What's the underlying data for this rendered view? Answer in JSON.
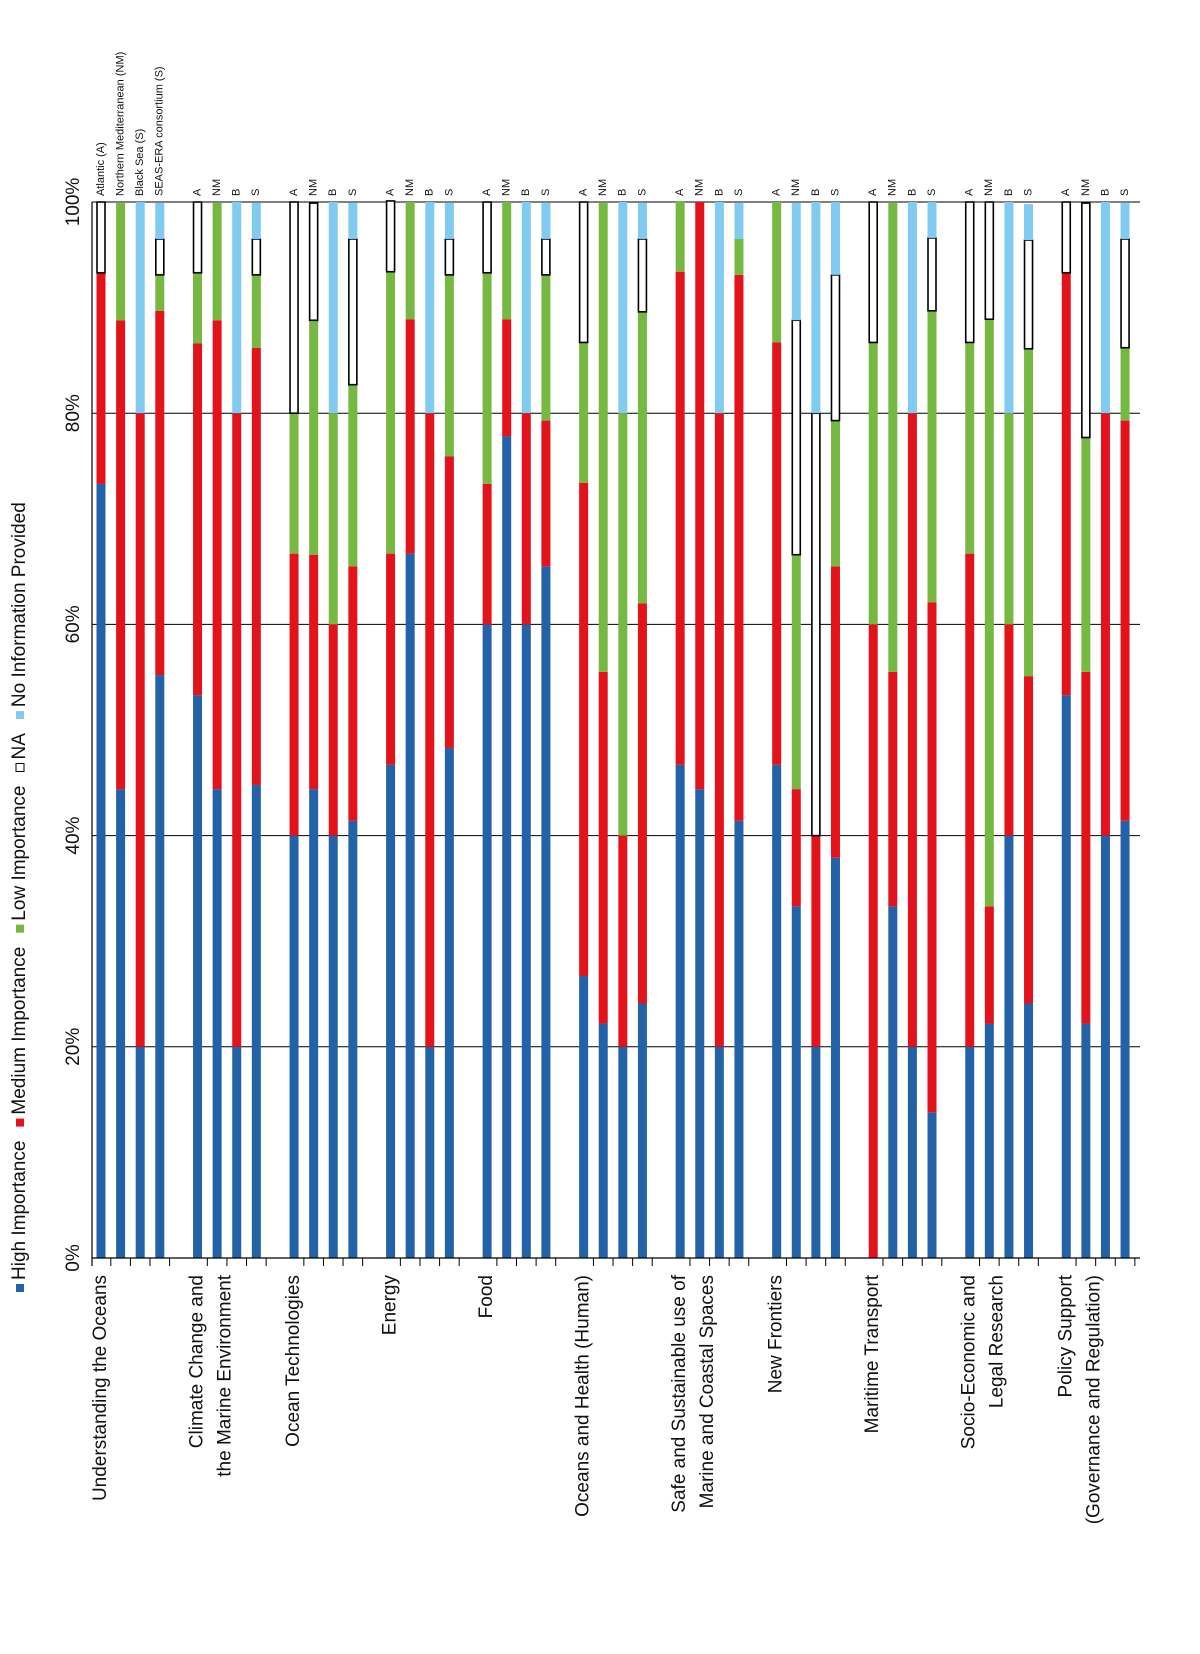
{
  "chart_data": {
    "type": "stacked-bar",
    "categories": [
      "Atlantic (A)",
      "Northern Mediterranean (NM)",
      "Black Sea (S)",
      "SEAS-ERA consortium (S)",
      "A",
      "NM",
      "B",
      "S",
      "A",
      "NM",
      "B",
      "S",
      "A",
      "NM",
      "B",
      "S",
      "A",
      "NM",
      "B",
      "S",
      "A",
      "NM",
      "B",
      "S",
      "A",
      "NM",
      "B",
      "S",
      "A",
      "NM",
      "B",
      "S",
      "A",
      "NM",
      "B",
      "S",
      "A",
      "NM",
      "B",
      "S",
      "A",
      "NM",
      "B",
      "S"
    ],
    "groups": [
      [
        "Understanding the Oceans"
      ],
      [
        "Climate Change and",
        "the Marine Environment"
      ],
      [
        "Ocean Technologies"
      ],
      [
        "Energy"
      ],
      [
        "Food"
      ],
      [
        "Oceans and Health (Human)"
      ],
      [
        "Safe and Sustainable use of",
        "Marine and Coastal Spaces"
      ],
      [
        "New Frontiers"
      ],
      [
        "Maritime Transport"
      ],
      [
        "Socio-Economic and",
        "Legal Research"
      ],
      [
        "Policy Support",
        "(Governance and Regulation)"
      ]
    ],
    "series": [
      {
        "name": "High Importance",
        "color": "#2462a8",
        "values": [
          73.3,
          44.4,
          20,
          55.2,
          53.3,
          44.4,
          20,
          44.8,
          40,
          44.4,
          40,
          41.4,
          46.7,
          66.7,
          20,
          48.3,
          60,
          77.8,
          60,
          65.5,
          26.7,
          22.2,
          20,
          24.1,
          46.7,
          44.4,
          20,
          41.4,
          46.7,
          33.3,
          20,
          37.9,
          0,
          33.3,
          20,
          13.8,
          20,
          22.2,
          40,
          24.1,
          53.3,
          22.2,
          40,
          41.4
        ]
      },
      {
        "name": "Medium Importance",
        "color": "#e3131b",
        "values": [
          20,
          44.4,
          60,
          34.5,
          33.3,
          44.4,
          60,
          41.4,
          26.7,
          22.2,
          20,
          24.1,
          20,
          22.2,
          60,
          27.6,
          13.3,
          11.1,
          20,
          13.8,
          46.7,
          33.3,
          20,
          37.9,
          46.7,
          55.6,
          60,
          51.7,
          40,
          11.1,
          20,
          27.6,
          60,
          22.2,
          60,
          48.3,
          46.7,
          11.1,
          20,
          31,
          40,
          33.3,
          40,
          37.9
        ]
      },
      {
        "name": "Low Importance",
        "color": "#77b843",
        "values": [
          0,
          11.1,
          0,
          3.4,
          6.7,
          11.1,
          0,
          6.9,
          13.3,
          22.2,
          20,
          17.2,
          26.7,
          11.1,
          0,
          17.2,
          20,
          11.1,
          0,
          13.8,
          13.3,
          44.4,
          40,
          27.6,
          6.7,
          0,
          0,
          3.4,
          13.3,
          22.2,
          0,
          13.8,
          26.7,
          44.4,
          0,
          27.6,
          20,
          55.6,
          20,
          31,
          0,
          22.2,
          0,
          6.9
        ]
      },
      {
        "name": "NA",
        "color": "#ffffff",
        "values": [
          6.7,
          0,
          0,
          3.4,
          6.7,
          0,
          0,
          3.4,
          20,
          11.1,
          0,
          13.8,
          6.7,
          0,
          0,
          3.4,
          6.7,
          0,
          0,
          3.4,
          13.3,
          0,
          0,
          6.9,
          0,
          0,
          0,
          0,
          0,
          22.2,
          40,
          13.8,
          13.3,
          0,
          0,
          6.9,
          13.3,
          11.1,
          0,
          10.3,
          6.7,
          22.2,
          0,
          10.3
        ]
      },
      {
        "name": "No Information Provided",
        "color": "#80cbef",
        "values": [
          0,
          0,
          20,
          3.4,
          0,
          0,
          20,
          3.4,
          0,
          0,
          20,
          3.4,
          0,
          0,
          20,
          3.4,
          0,
          0,
          20,
          3.4,
          0,
          0,
          20,
          3.4,
          0,
          0,
          20,
          3.4,
          0,
          11.1,
          20,
          6.9,
          0,
          0,
          20,
          3.4,
          0,
          0,
          20,
          3.4,
          0,
          0,
          20,
          3.4
        ]
      }
    ],
    "ylim": [
      0,
      100
    ],
    "yticks": [
      {
        "value": 0,
        "label": "0%"
      },
      {
        "value": 20,
        "label": "20%"
      },
      {
        "value": 40,
        "label": "40%"
      },
      {
        "value": 60,
        "label": "60%"
      },
      {
        "value": 80,
        "label": "80%"
      },
      {
        "value": 100,
        "label": "100%"
      }
    ],
    "grid": true
  }
}
